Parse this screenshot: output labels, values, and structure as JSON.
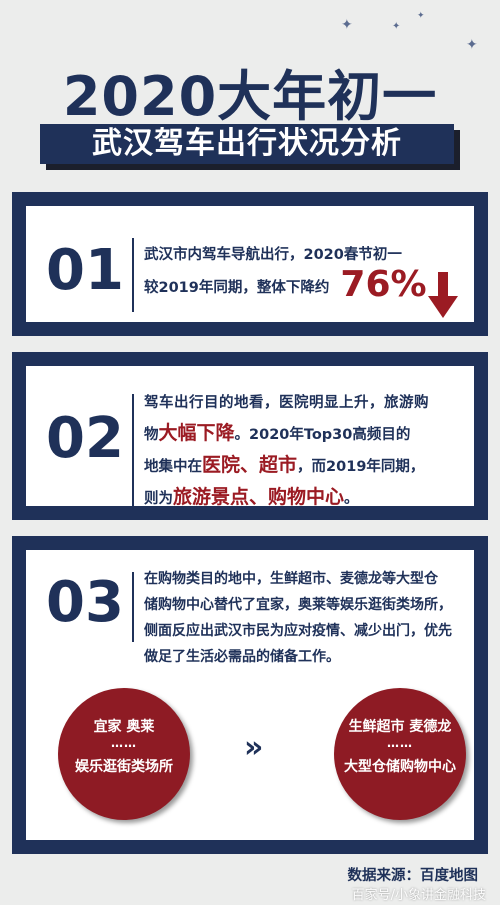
{
  "header": {
    "title": "2020大年初一",
    "subtitle": "武汉驾车出行状况分析"
  },
  "cards": [
    {
      "number": "01",
      "line1": "武汉市内驾车导航出行，2020春节初一",
      "line2": "较2019年同期，整体下降约",
      "highlight": "76%"
    },
    {
      "number": "02",
      "l1": "驾车出行目的地看，医院明显上升，旅游购",
      "l2a": "物",
      "l2red": "大幅下降",
      "l2b": "。2020年Top30高频目的",
      "l3a": "地集中在",
      "l3red1": "医院",
      "l3sep": "、",
      "l3red2": "超市",
      "l3b": "，而2019年同期，",
      "l4a": "则为",
      "l4red": "旅游景点、购物中心",
      "l4b": "。"
    },
    {
      "number": "03",
      "lines": [
        "在购物类目的地中，生鲜超市、麦德龙等大型仓",
        "储购物中心替代了宜家，奥莱等娱乐逛街类场所，",
        "侧面反应出武汉市民为应对疫情、减少出门，优先",
        "做足了生活必需品的储备工作。"
      ],
      "left_circle": {
        "top": "宜家  奥莱",
        "dots": "……",
        "bottom": "娱乐逛街类场所"
      },
      "chevrons": "»",
      "right_circle": {
        "top": "生鲜超市 麦德龙",
        "dots": "……",
        "bottom": "大型仓储购物中心"
      }
    }
  ],
  "footer": {
    "source": "数据来源：百度地图",
    "watermark": "百家号/小象讲金融科技"
  },
  "colors": {
    "navy": "#1f3159",
    "red": "#9b1b23",
    "circle": "#8e1b24"
  },
  "icons": {
    "down_arrow": "arrow-down-icon",
    "sparkle": "sparkle-icon",
    "chevron": "double-chevron-icon"
  }
}
